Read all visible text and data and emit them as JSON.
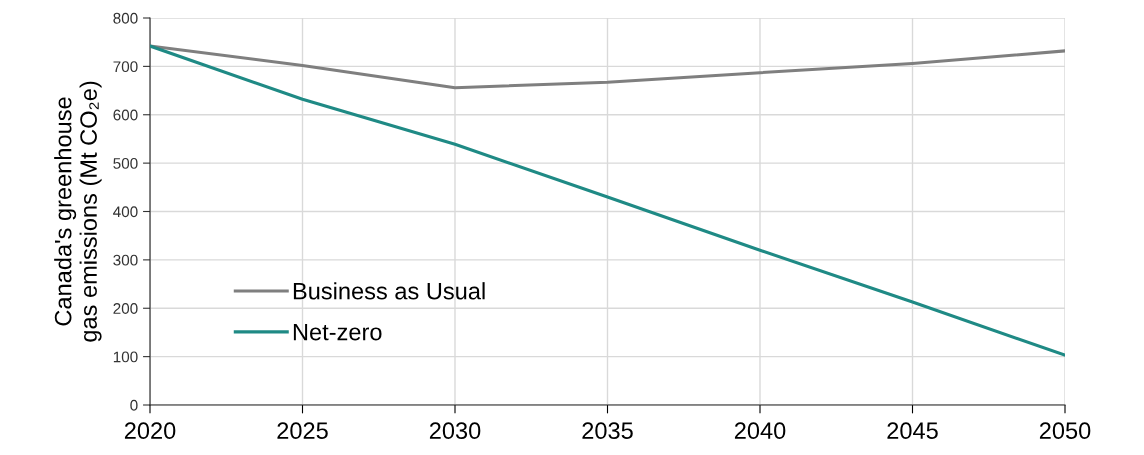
{
  "chart_data": {
    "type": "line",
    "ylabel": "Canada's greenhouse\ngas emissions (Mt CO₂e)",
    "x": [
      2020,
      2025,
      2030,
      2035,
      2040,
      2045,
      2050
    ],
    "series": [
      {
        "name": "Business as Usual",
        "color": "#7f7f7f",
        "values": [
          742,
          702,
          656,
          667,
          687,
          706,
          732
        ]
      },
      {
        "name": "Net-zero",
        "color": "#1f8a85",
        "values": [
          742,
          632,
          539,
          430,
          320,
          213,
          103
        ]
      }
    ],
    "xlim": [
      2020,
      2050
    ],
    "xticks": [
      2020,
      2025,
      2030,
      2035,
      2040,
      2045,
      2050
    ],
    "ylim": [
      0,
      800
    ],
    "yticks": [
      0,
      100,
      200,
      300,
      400,
      500,
      600,
      700,
      800
    ],
    "grid": true,
    "legend": "bottom left",
    "marker": "none",
    "line_style": "solid"
  }
}
